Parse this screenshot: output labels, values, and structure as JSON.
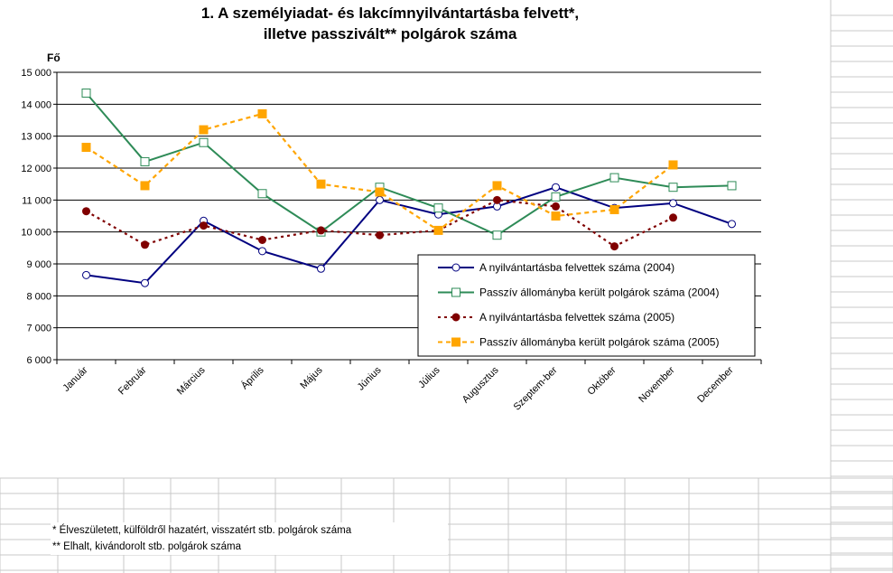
{
  "chart_data": {
    "type": "line",
    "title_lines": [
      "1. A személyiadat- és lakcímnyilvántartásba felvett*,",
      "illetve passzivált** polgárok száma"
    ],
    "ylabel": "Fő",
    "ylim": [
      6000,
      15000
    ],
    "yticks": [
      6000,
      7000,
      8000,
      9000,
      10000,
      11000,
      12000,
      13000,
      14000,
      15000
    ],
    "ytick_labels": [
      "6 000",
      "7 000",
      "8 000",
      "9 000",
      "10 000",
      "11 000",
      "12 000",
      "13 000",
      "14 000",
      "15 000"
    ],
    "grid": true,
    "legend_position": "lower-right",
    "categories": [
      "Január",
      "Február",
      "Március",
      "Április",
      "Május",
      "Június",
      "Július",
      "Augusztus",
      "Szeptem-ber",
      "Október",
      "November",
      "December"
    ],
    "series": [
      {
        "name": "A nyilvántartásba felvettek száma (2004)",
        "color": "#000080",
        "dash": "solid",
        "marker": "circle-open",
        "values": [
          8650,
          8400,
          10350,
          9400,
          8850,
          11000,
          10550,
          10800,
          11400,
          10750,
          10900,
          10250
        ]
      },
      {
        "name": "Passzív állományba került polgárok száma (2004)",
        "color": "#2e8b57",
        "dash": "solid",
        "marker": "square-open",
        "values": [
          14350,
          12200,
          12800,
          11200,
          10000,
          11400,
          10750,
          9900,
          11100,
          11700,
          11400,
          11450
        ]
      },
      {
        "name": "A nyilvántartásba felvettek száma (2005)",
        "color": "#800000",
        "dash": "dotted",
        "marker": "circle-filled",
        "values": [
          10650,
          9600,
          10200,
          9750,
          10050,
          9900,
          10050,
          11000,
          10800,
          9550,
          10450,
          null
        ]
      },
      {
        "name": "Passzív állományba került polgárok száma (2005)",
        "color": "#ffa500",
        "dash": "dashed",
        "marker": "square-filled",
        "values": [
          12650,
          11450,
          13200,
          13700,
          11500,
          11250,
          10050,
          11450,
          10500,
          10700,
          12100,
          null
        ]
      }
    ]
  },
  "footnotes": [
    "* Élveszületett, külföldről hazatért, visszatért stb. polgárok száma",
    "** Elhalt, kivándorolt stb. polgárok száma"
  ]
}
